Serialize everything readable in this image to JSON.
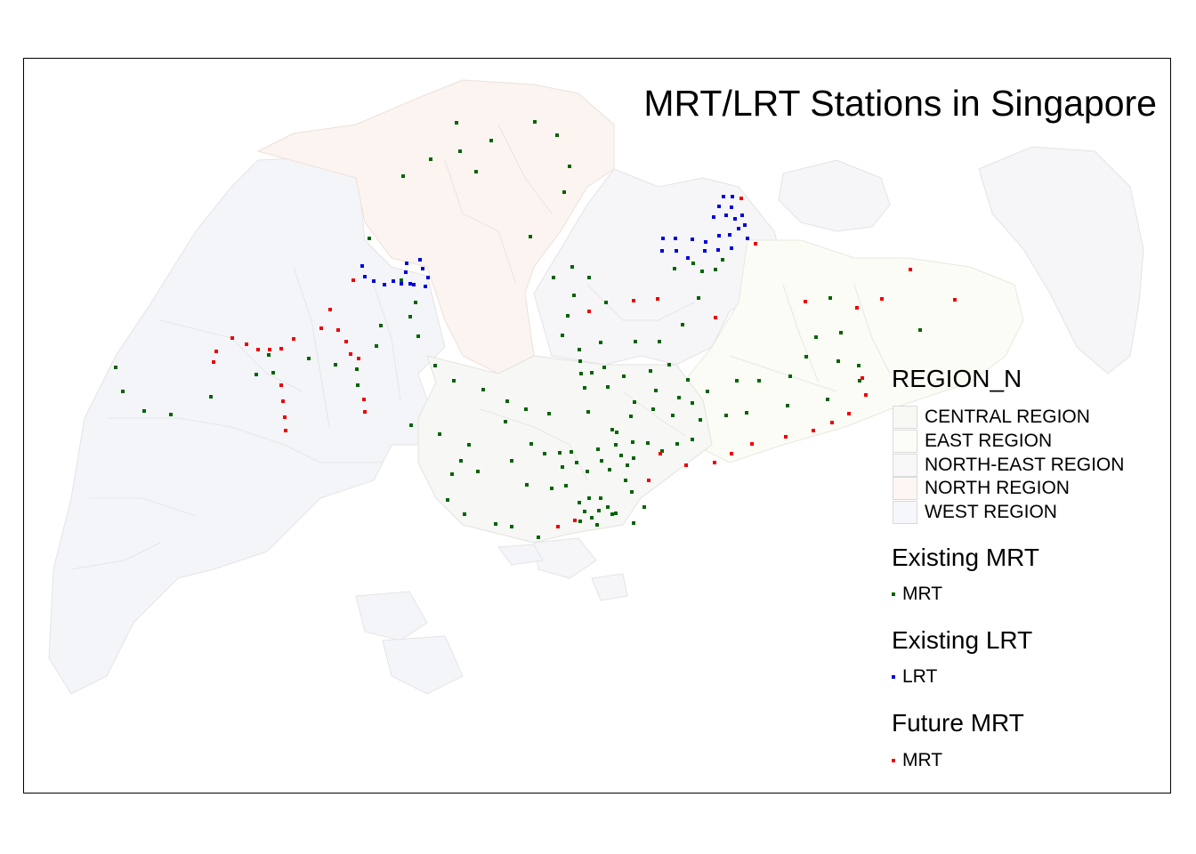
{
  "title": "MRT/LRT Stations in Singapore",
  "legend": {
    "region_title": "REGION_N",
    "regions": [
      {
        "name": "CENTRAL REGION",
        "color": "#f8f8f5"
      },
      {
        "name": "EAST REGION",
        "color": "#fdfdf8"
      },
      {
        "name": "NORTH-EAST REGION",
        "color": "#f8f8f9"
      },
      {
        "name": "NORTH REGION",
        "color": "#fdf6f2"
      },
      {
        "name": "WEST REGION",
        "color": "#f6f7fa"
      }
    ],
    "layers": [
      {
        "title": "Existing MRT",
        "label": "MRT",
        "color": "#006400"
      },
      {
        "title": "Existing LRT",
        "label": "LRT",
        "color": "#0000dd"
      },
      {
        "title": "Future MRT",
        "label": "MRT",
        "color": "#ee0000"
      }
    ]
  },
  "stations": {
    "existing_mrt": [
      [
        513,
        138
      ],
      [
        601,
        137
      ],
      [
        626,
        152
      ],
      [
        552,
        158
      ],
      [
        517,
        170
      ],
      [
        484,
        179
      ],
      [
        535,
        193
      ],
      [
        640,
        187
      ],
      [
        453,
        198
      ],
      [
        634,
        216
      ],
      [
        415,
        268
      ],
      [
        596,
        266
      ],
      [
        643,
        300
      ],
      [
        622,
        312
      ],
      [
        662,
        312
      ],
      [
        645,
        332
      ],
      [
        681,
        340
      ],
      [
        638,
        355
      ],
      [
        632,
        377
      ],
      [
        651,
        393
      ],
      [
        675,
        385
      ],
      [
        467,
        340
      ],
      [
        451,
        315
      ],
      [
        461,
        356
      ],
      [
        428,
        366
      ],
      [
        470,
        378
      ],
      [
        423,
        389
      ],
      [
        377,
        410
      ],
      [
        347,
        403
      ],
      [
        288,
        421
      ],
      [
        307,
        419
      ],
      [
        302,
        399
      ],
      [
        401,
        415
      ],
      [
        402,
        433
      ],
      [
        237,
        446
      ],
      [
        130,
        413
      ],
      [
        138,
        440
      ],
      [
        162,
        462
      ],
      [
        192,
        466
      ],
      [
        462,
        478
      ],
      [
        489,
        411
      ],
      [
        510,
        428
      ],
      [
        543,
        438
      ],
      [
        570,
        451
      ],
      [
        568,
        474
      ],
      [
        591,
        460
      ],
      [
        617,
        465
      ],
      [
        494,
        488
      ],
      [
        527,
        500
      ],
      [
        518,
        518
      ],
      [
        508,
        533
      ],
      [
        503,
        562
      ],
      [
        522,
        578
      ],
      [
        557,
        589
      ],
      [
        575,
        592
      ],
      [
        605,
        604
      ],
      [
        537,
        530
      ],
      [
        575,
        518
      ],
      [
        597,
        499
      ],
      [
        612,
        510
      ],
      [
        629,
        509
      ],
      [
        642,
        508
      ],
      [
        592,
        545
      ],
      [
        620,
        549
      ],
      [
        632,
        525
      ],
      [
        636,
        546
      ],
      [
        648,
        520
      ],
      [
        660,
        530
      ],
      [
        672,
        505
      ],
      [
        676,
        518
      ],
      [
        685,
        528
      ],
      [
        692,
        500
      ],
      [
        698,
        512
      ],
      [
        705,
        523
      ],
      [
        711,
        497
      ],
      [
        712,
        515
      ],
      [
        693,
        486
      ],
      [
        688,
        483
      ],
      [
        661,
        463
      ],
      [
        709,
        468
      ],
      [
        675,
        560
      ],
      [
        683,
        570
      ],
      [
        688,
        578
      ],
      [
        662,
        560
      ],
      [
        651,
        565
      ],
      [
        657,
        575
      ],
      [
        665,
        582
      ],
      [
        673,
        574
      ],
      [
        652,
        586
      ],
      [
        671,
        590
      ],
      [
        692,
        577
      ],
      [
        712,
        588
      ],
      [
        724,
        570
      ],
      [
        710,
        553
      ],
      [
        703,
        540
      ],
      [
        744,
        507
      ],
      [
        728,
        498
      ],
      [
        761,
        499
      ],
      [
        778,
        494
      ],
      [
        787,
        472
      ],
      [
        795,
        440
      ],
      [
        816,
        467
      ],
      [
        839,
        464
      ],
      [
        853,
        428
      ],
      [
        828,
        428
      ],
      [
        773,
        427
      ],
      [
        763,
        447
      ],
      [
        778,
        453
      ],
      [
        756,
        467
      ],
      [
        734,
        460
      ],
      [
        737,
        439
      ],
      [
        713,
        452
      ],
      [
        731,
        417
      ],
      [
        752,
        410
      ],
      [
        714,
        384
      ],
      [
        741,
        384
      ],
      [
        767,
        365
      ],
      [
        785,
        335
      ],
      [
        758,
        302
      ],
      [
        789,
        305
      ],
      [
        804,
        303
      ],
      [
        812,
        292
      ],
      [
        779,
        296
      ],
      [
        701,
        423
      ],
      [
        683,
        435
      ],
      [
        679,
        413
      ],
      [
        665,
        419
      ],
      [
        653,
        420
      ],
      [
        652,
        406
      ],
      [
        657,
        436
      ],
      [
        888,
        423
      ],
      [
        930,
        449
      ],
      [
        885,
        456
      ],
      [
        906,
        401
      ],
      [
        917,
        379
      ],
      [
        945,
        374
      ],
      [
        933,
        335
      ],
      [
        942,
        406
      ],
      [
        965,
        411
      ],
      [
        966,
        428
      ],
      [
        1034,
        371
      ]
    ],
    "existing_lrt": [
      [
        407,
        299
      ],
      [
        410,
        311
      ],
      [
        420,
        316
      ],
      [
        432,
        320
      ],
      [
        442,
        316
      ],
      [
        451,
        319
      ],
      [
        456,
        306
      ],
      [
        457,
        296
      ],
      [
        461,
        319
      ],
      [
        465,
        320
      ],
      [
        472,
        292
      ],
      [
        475,
        302
      ],
      [
        481,
        312
      ],
      [
        478,
        322
      ],
      [
        813,
        221
      ],
      [
        808,
        232
      ],
      [
        802,
        244
      ],
      [
        816,
        242
      ],
      [
        823,
        221
      ],
      [
        822,
        233
      ],
      [
        826,
        246
      ],
      [
        834,
        242
      ],
      [
        837,
        253
      ],
      [
        830,
        257
      ],
      [
        840,
        268
      ],
      [
        820,
        264
      ],
      [
        808,
        265
      ],
      [
        793,
        272
      ],
      [
        778,
        269
      ],
      [
        759,
        268
      ],
      [
        745,
        268
      ],
      [
        744,
        282
      ],
      [
        760,
        282
      ],
      [
        773,
        290
      ],
      [
        792,
        282
      ],
      [
        807,
        281
      ],
      [
        822,
        279
      ]
    ],
    "future_mrt": [
      [
        833,
        223
      ],
      [
        849,
        274
      ],
      [
        397,
        315
      ],
      [
        371,
        348
      ],
      [
        361,
        369
      ],
      [
        380,
        371
      ],
      [
        389,
        384
      ],
      [
        394,
        398
      ],
      [
        403,
        403
      ],
      [
        330,
        381
      ],
      [
        316,
        392
      ],
      [
        303,
        393
      ],
      [
        290,
        393
      ],
      [
        277,
        387
      ],
      [
        261,
        380
      ],
      [
        243,
        395
      ],
      [
        240,
        407
      ],
      [
        316,
        433
      ],
      [
        318,
        451
      ],
      [
        320,
        469
      ],
      [
        321,
        484
      ],
      [
        409,
        449
      ],
      [
        410,
        463
      ],
      [
        662,
        350
      ],
      [
        712,
        338
      ],
      [
        739,
        336
      ],
      [
        804,
        357
      ],
      [
        627,
        592
      ],
      [
        646,
        585
      ],
      [
        729,
        540
      ],
      [
        742,
        510
      ],
      [
        771,
        523
      ],
      [
        803,
        520
      ],
      [
        822,
        510
      ],
      [
        845,
        499
      ],
      [
        883,
        491
      ],
      [
        914,
        484
      ],
      [
        935,
        475
      ],
      [
        954,
        465
      ],
      [
        973,
        444
      ],
      [
        969,
        425
      ],
      [
        905,
        339
      ],
      [
        963,
        346
      ],
      [
        991,
        336
      ],
      [
        1023,
        303
      ],
      [
        1073,
        337
      ]
    ]
  }
}
